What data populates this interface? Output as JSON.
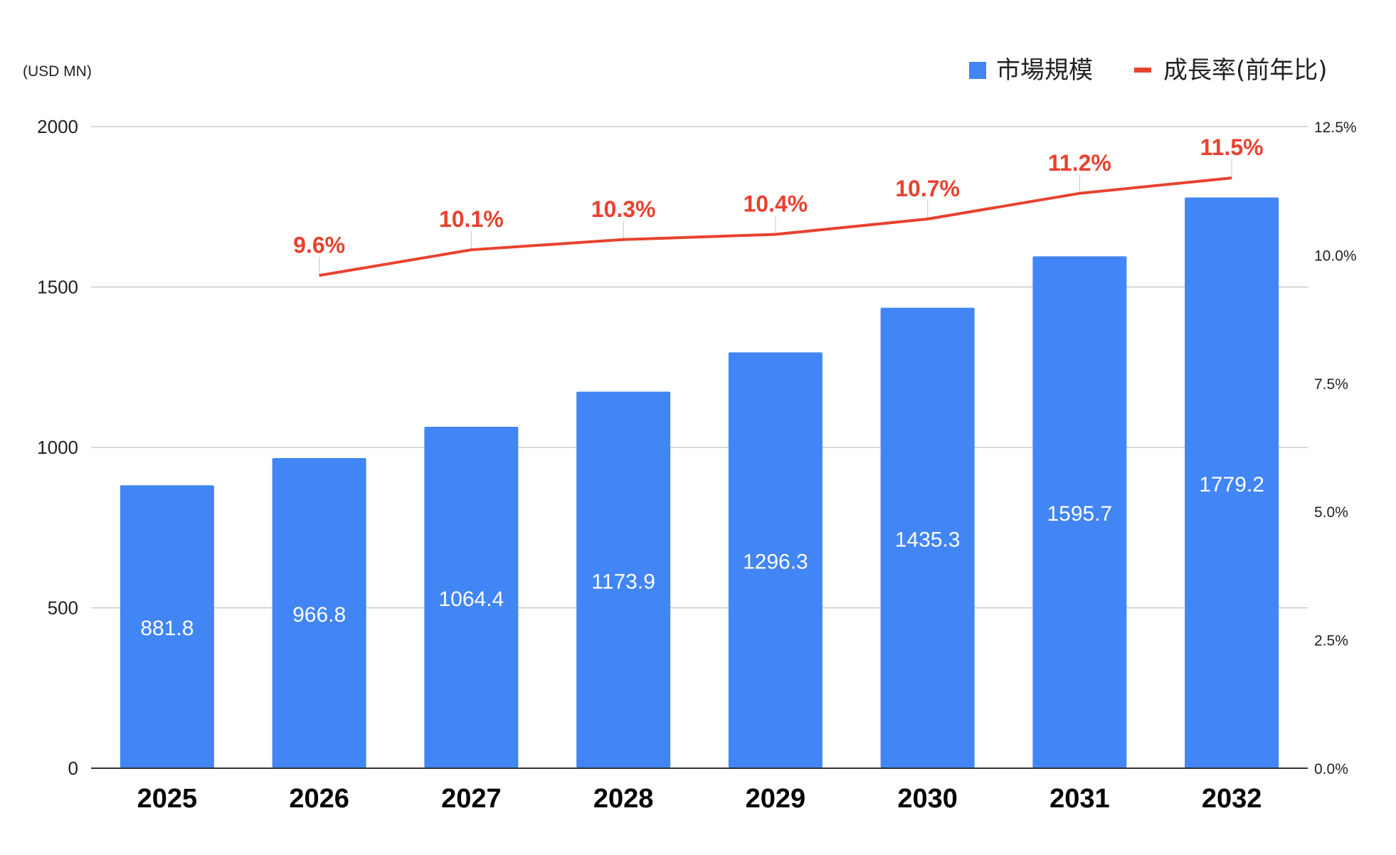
{
  "chart_data": {
    "type": "bar",
    "unit_label": "(USD MN)",
    "categories": [
      "2025",
      "2026",
      "2027",
      "2028",
      "2029",
      "2030",
      "2031",
      "2032"
    ],
    "series": [
      {
        "name": "市場規模",
        "kind": "bar",
        "axis": "left",
        "color": "#4285f4",
        "values": [
          881.8,
          966.8,
          1064.4,
          1173.9,
          1296.3,
          1435.3,
          1595.7,
          1779.2
        ],
        "value_labels": [
          "881.8",
          "966.8",
          "1064.4",
          "1173.9",
          "1296.3",
          "1435.3",
          "1595.7",
          "1779.2"
        ]
      },
      {
        "name": "成長率(前年比)",
        "kind": "line",
        "axis": "right",
        "color": "#e8422f",
        "values": [
          null,
          9.6,
          10.1,
          10.3,
          10.4,
          10.7,
          11.2,
          11.5
        ],
        "value_labels": [
          "",
          "9.6%",
          "10.1%",
          "10.3%",
          "10.4%",
          "10.7%",
          "11.2%",
          "11.5%"
        ]
      }
    ],
    "left_axis": {
      "ylim": [
        0,
        2000
      ],
      "ticks": [
        0,
        500,
        1000,
        1500,
        2000
      ],
      "tick_labels": [
        "0",
        "500",
        "1000",
        "1500",
        "2000"
      ]
    },
    "right_axis": {
      "ylim": [
        0,
        12.5
      ],
      "ticks": [
        0,
        2.5,
        5,
        7.5,
        10,
        12.5
      ],
      "tick_labels": [
        "0.0%",
        "2.5%",
        "5.0%",
        "7.5%",
        "10.0%",
        "12.5%"
      ]
    },
    "grid": true,
    "legend_position": "top-right"
  }
}
